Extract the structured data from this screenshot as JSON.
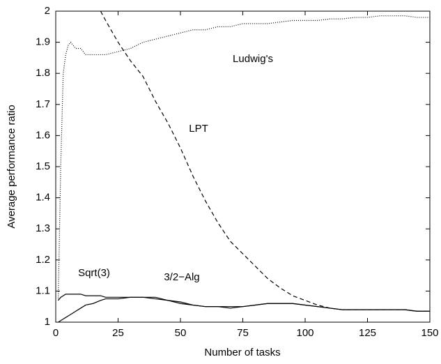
{
  "chart_data": {
    "type": "line",
    "xlabel": "Number of tasks",
    "ylabel": "Average performance ratio",
    "x": [
      1,
      2,
      3,
      4,
      5,
      6,
      8,
      10,
      12,
      15,
      18,
      20,
      25,
      30,
      35,
      40,
      45,
      50,
      55,
      60,
      65,
      70,
      75,
      80,
      85,
      90,
      95,
      100,
      105,
      110,
      115,
      120,
      125,
      130,
      135,
      140,
      145,
      150
    ],
    "series": [
      {
        "name": "Ludwig's",
        "color": "#000000",
        "dash": "dotted",
        "values": [
          1.07,
          1.5,
          1.8,
          1.86,
          1.89,
          1.9,
          1.88,
          1.88,
          1.86,
          1.86,
          1.86,
          1.86,
          1.87,
          1.88,
          1.9,
          1.91,
          1.92,
          1.93,
          1.94,
          1.94,
          1.95,
          1.95,
          1.96,
          1.96,
          1.96,
          1.965,
          1.97,
          1.97,
          1.97,
          1.975,
          1.975,
          1.98,
          1.98,
          1.985,
          1.985,
          1.985,
          1.98,
          1.98
        ]
      },
      {
        "name": "LPT",
        "color": "#000000",
        "dash": "dashed",
        "values": [
          null,
          null,
          null,
          null,
          null,
          null,
          null,
          null,
          null,
          null,
          2.0,
          1.97,
          1.9,
          1.84,
          1.79,
          1.71,
          1.64,
          1.56,
          1.47,
          1.39,
          1.32,
          1.26,
          1.22,
          1.18,
          1.14,
          1.11,
          1.085,
          1.07,
          1.055,
          1.045,
          1.04,
          1.04,
          1.04,
          1.04,
          1.04,
          1.04,
          1.035,
          1.035
        ]
      },
      {
        "name": "Sqrt(3)",
        "color": "#000000",
        "dash": "solid",
        "values": [
          1.07,
          1.08,
          1.085,
          1.09,
          1.09,
          1.09,
          1.09,
          1.09,
          1.085,
          1.085,
          1.085,
          1.08,
          1.08,
          1.08,
          1.08,
          1.075,
          1.07,
          1.06,
          1.055,
          1.05,
          1.05,
          1.05,
          1.05,
          1.055,
          1.06,
          1.06,
          1.06,
          1.055,
          1.05,
          1.045,
          1.04,
          1.04,
          1.04,
          1.04,
          1.04,
          1.04,
          1.035,
          1.035
        ]
      },
      {
        "name": "3/2−Alg",
        "color": "#000000",
        "dash": "solid",
        "values": [
          1,
          1.005,
          1.01,
          1.015,
          1.02,
          1.025,
          1.035,
          1.045,
          1.055,
          1.06,
          1.07,
          1.075,
          1.075,
          1.08,
          1.08,
          1.08,
          1.07,
          1.065,
          1.055,
          1.05,
          1.05,
          1.045,
          1.05,
          1.055,
          1.06,
          1.06,
          1.06,
          1.055,
          1.05,
          1.045,
          1.04,
          1.04,
          1.04,
          1.04,
          1.04,
          1.04,
          1.035,
          1.035
        ]
      }
    ],
    "xlim": [
      0,
      150
    ],
    "xticks": [
      0,
      25,
      50,
      75,
      100,
      125,
      150
    ],
    "ylim": [
      1,
      2
    ],
    "yticks": [
      1,
      1.1,
      1.2,
      1.3,
      1.4,
      1.5,
      1.6,
      1.7,
      1.8,
      1.9,
      2
    ],
    "grid": false,
    "legend": "inline"
  }
}
